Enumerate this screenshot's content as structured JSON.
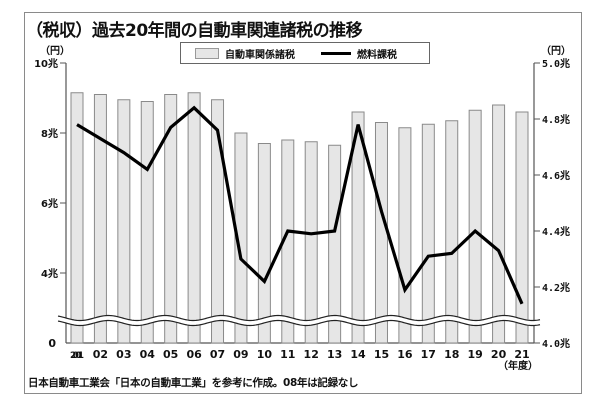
{
  "title": "（税収）過去20年間の自動車関連諸税の推移",
  "legend": {
    "bar_label": "自動車関係諸税",
    "line_label": "燃料課税"
  },
  "axes": {
    "left_unit": "（円）",
    "right_unit": "（円）",
    "x_unit": "（年度）",
    "left_ticks": [
      "10兆",
      "8兆",
      "6兆",
      "4兆",
      "0"
    ],
    "right_ticks": [
      "5.0兆",
      "4.8兆",
      "4.6兆",
      "4.4兆",
      "4.2兆",
      "4.0兆"
    ]
  },
  "note": "日本自動車工業会「日本の自動車工業」を参考に作成。08年は記録なし",
  "colors": {
    "bar_fill": "#e6e6e6",
    "bar_stroke": "#8a8a8a",
    "line": "#000000",
    "axis": "#555555"
  },
  "chart_data": {
    "type": "bar+line",
    "title": "（税収）過去20年間の自動車関連諸税の推移",
    "xlabel": "（年度）",
    "categories": [
      "2001",
      "02",
      "03",
      "04",
      "05",
      "06",
      "07",
      "09",
      "10",
      "11",
      "12",
      "13",
      "14",
      "15",
      "16",
      "17",
      "18",
      "19",
      "20",
      "21"
    ],
    "series": [
      {
        "name": "自動車関係諸税",
        "type": "bar",
        "axis": "left",
        "unit": "兆円",
        "values": [
          9.15,
          9.1,
          8.95,
          8.9,
          9.1,
          9.15,
          8.95,
          8.0,
          7.7,
          7.8,
          7.75,
          7.65,
          8.6,
          8.3,
          8.15,
          8.25,
          8.35,
          8.65,
          8.8,
          8.6
        ]
      },
      {
        "name": "燃料課税",
        "type": "line",
        "axis": "right",
        "unit": "兆円",
        "values": [
          4.78,
          4.73,
          4.68,
          4.62,
          4.77,
          4.84,
          4.76,
          4.3,
          4.22,
          4.4,
          4.39,
          4.4,
          4.78,
          4.47,
          4.19,
          4.31,
          4.32,
          4.4,
          4.33,
          4.14
        ]
      }
    ],
    "left_axis": {
      "label": "（円）",
      "ticks": [
        "0",
        "4兆",
        "6兆",
        "8兆",
        "10兆"
      ],
      "ylim": [
        0,
        10
      ],
      "broken_below": 4
    },
    "right_axis": {
      "label": "（円）",
      "ticks": [
        "4.0兆",
        "4.2兆",
        "4.4兆",
        "4.6兆",
        "4.8兆",
        "5.0兆"
      ],
      "ylim": [
        4.0,
        5.0
      ]
    },
    "grid": false,
    "legend_position": "top"
  }
}
